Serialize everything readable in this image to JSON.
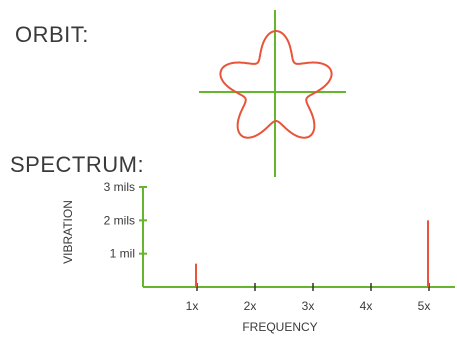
{
  "sections": {
    "orbit_label": "ORBIT:",
    "spectrum_label": "SPECTRUM:"
  },
  "colors": {
    "axis": "#66b52e",
    "trace": "#e8543a",
    "text": "#3a3a3a"
  },
  "orbit": {
    "lobes": 5
  },
  "chart_data": {
    "type": "bar",
    "title": "",
    "xlabel": "FREQUENCY",
    "ylabel": "VIBRATION",
    "categories": [
      "1x",
      "2x",
      "3x",
      "4x",
      "5x"
    ],
    "values": [
      0.7,
      0,
      0,
      0,
      2.0
    ],
    "ylim": [
      0,
      3
    ],
    "yticks": [
      {
        "value": 1,
        "label": "1 mil"
      },
      {
        "value": 2,
        "label": "2 mils"
      },
      {
        "value": 3,
        "label": "3 mils"
      }
    ],
    "grid": false
  }
}
